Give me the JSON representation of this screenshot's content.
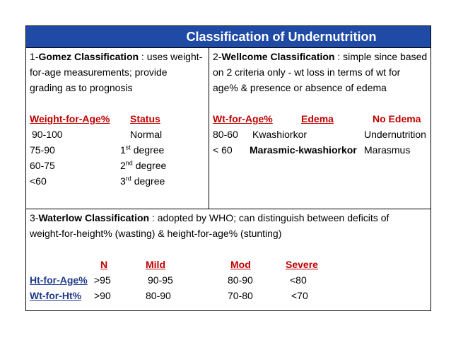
{
  "title": "Classification of Undernutrition",
  "gomez": {
    "prefix": "1-",
    "name": "Gomez Classification",
    "desc_1": " : uses weight-",
    "desc_2": "for-age measurements; provide",
    "desc_3": "grading as to prognosis",
    "col_weight": "Weight-for-Age%",
    "col_status": "Status",
    "rows": [
      {
        "range": "90-100",
        "num": "",
        "sup": "",
        "status": "Normal"
      },
      {
        "range": "75-90",
        "num": "1",
        "sup": "st",
        "status": " degree"
      },
      {
        "range": "60-75",
        "num": "2",
        "sup": "nd",
        "status": " degree"
      },
      {
        "range": "<60",
        "num": "3",
        "sup": "rd",
        "status": " degree"
      }
    ]
  },
  "wellcome": {
    "prefix": "2-",
    "name": "Wellcome Classification",
    "desc_1": " : simple since based",
    "desc_2": "on 2 criteria only - wt loss in terms of wt for",
    "desc_3": "age% & presence or absence of edema",
    "col_wt": "Wt-for-Age%",
    "col_edema": "Edema",
    "col_noedema": "No Edema",
    "rows": [
      {
        "range": "80-60",
        "edema": "Kwashiorkor",
        "noedema": "Undernutrition"
      },
      {
        "range": "< 60",
        "edema": "Marasmic-kwashiorkor",
        "noedema": "Marasmus"
      }
    ]
  },
  "waterlow": {
    "prefix": "3-",
    "name": "Waterlow Classification",
    "desc_1": " : adopted by WHO; can distinguish between deficits of",
    "desc_2": "weight-for-height% (wasting) & height-for-age% (stunting)",
    "col_n": "N",
    "col_mild": "Mild",
    "col_mod": "Mod",
    "col_severe": "Severe",
    "rows": [
      {
        "label": "Ht-for-Age%",
        "n": ">95",
        "mild": "90-95",
        "mod": "80-90",
        "severe": "<80"
      },
      {
        "label": "Wt-for-Ht%",
        "n": ">90",
        "mild": "80-90",
        "mod": "70-80",
        "severe": "<70"
      }
    ]
  },
  "colors": {
    "header_bg": "#1f4aa6",
    "red": "#c00000",
    "blue": "#1f3c8a"
  }
}
